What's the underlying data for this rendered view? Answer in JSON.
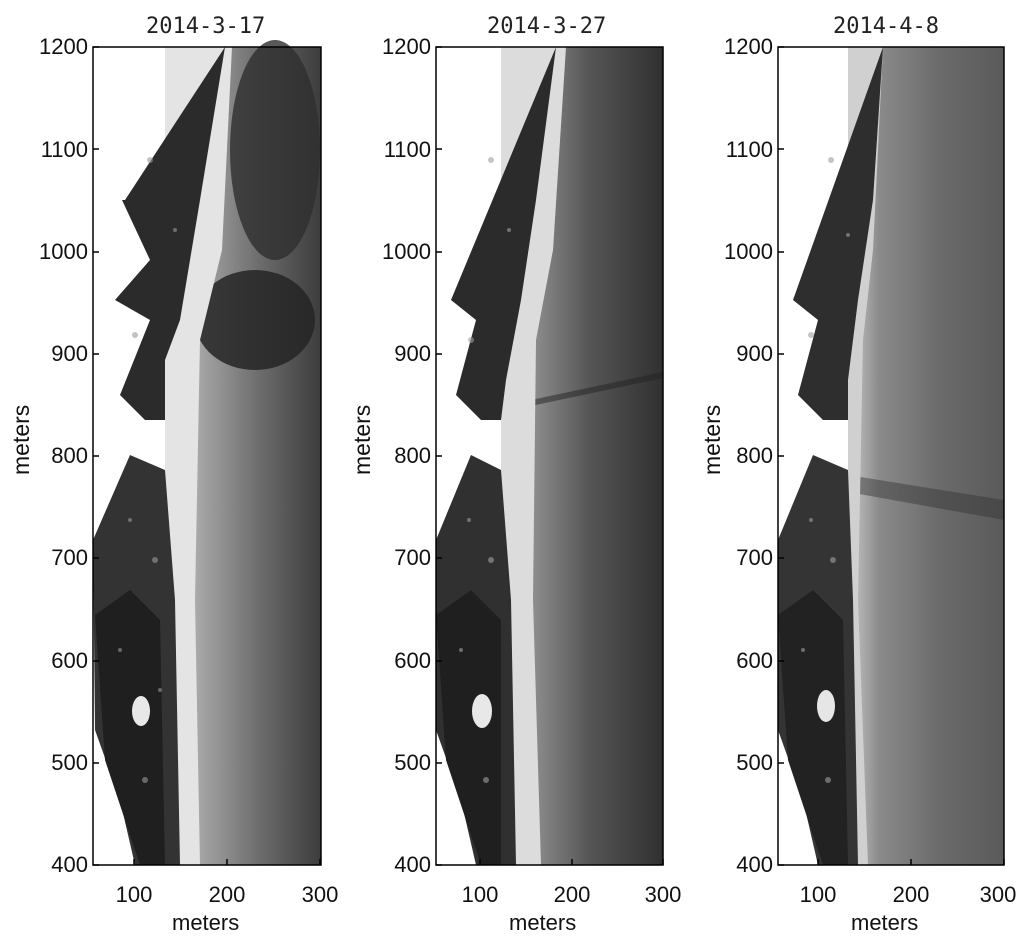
{
  "figure": {
    "panels": [
      {
        "title": "2014-3-17",
        "xlabel": "meters",
        "ylabel": "meters"
      },
      {
        "title": "2014-3-27",
        "xlabel": "meters",
        "ylabel": "meters"
      },
      {
        "title": "2014-4-8",
        "xlabel": "meters",
        "ylabel": "meters"
      }
    ],
    "y_ticks": [
      "1200",
      "1100",
      "1000",
      "900",
      "800",
      "700",
      "600",
      "500",
      "400"
    ],
    "x_ticks": [
      "100",
      "200",
      "300"
    ],
    "x_range": [
      55,
      300
    ],
    "y_range": [
      400,
      1200
    ],
    "image_description": "grayscale rectified aerial imagery of a coastline: dark vegetated land and buildings on the left, bright sandy beach strip, gray-to-dark water on the right"
  }
}
